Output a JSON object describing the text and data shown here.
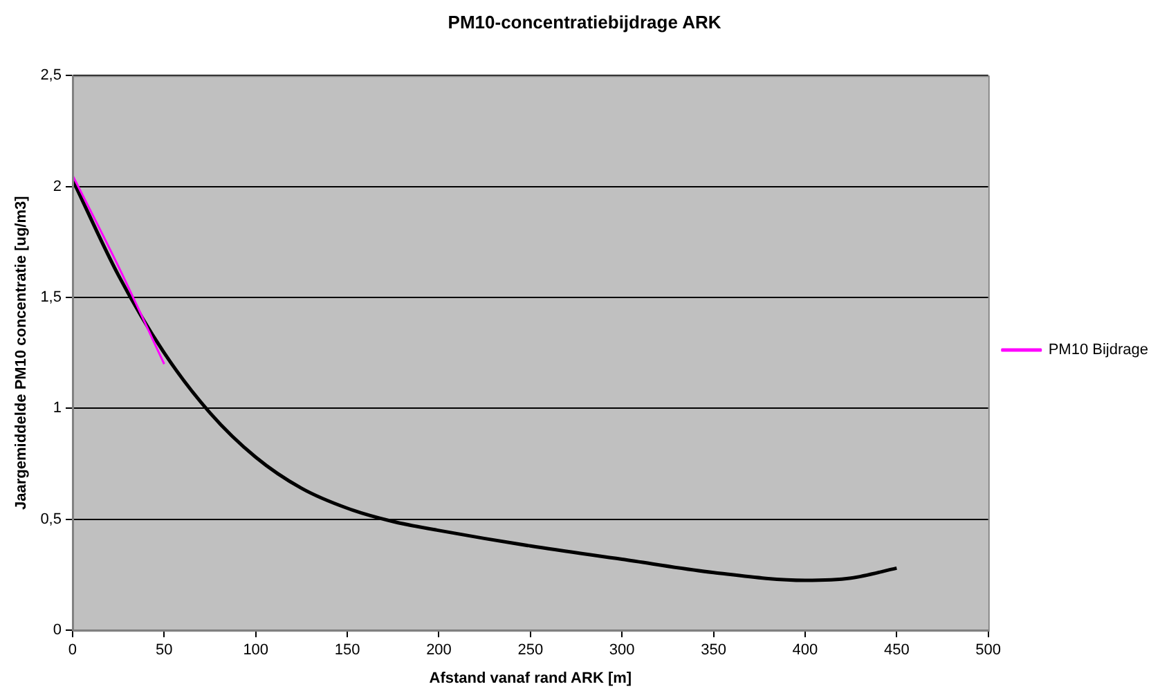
{
  "chart_data": {
    "type": "line",
    "title": "PM10-concentratiebijdrage ARK",
    "xlabel": "Afstand vanaf rand ARK [m]",
    "ylabel": "Jaargemiddelde PM10 concentratie [ug/m3]",
    "series": [
      {
        "name": "PM10 Bijdrage",
        "color": "#ff00ff",
        "x": [
          0,
          25,
          50
        ],
        "values": [
          2.05,
          1.64,
          1.2
        ]
      },
      {
        "type": "line",
        "color": "#000000",
        "x": [
          0,
          25,
          50,
          75,
          100,
          125,
          150,
          175,
          200,
          250,
          300,
          350,
          400,
          425,
          450
        ],
        "values": [
          2.03,
          1.6,
          1.25,
          0.98,
          0.78,
          0.64,
          0.55,
          0.49,
          0.45,
          0.38,
          0.32,
          0.26,
          0.225,
          0.235,
          0.28
        ]
      }
    ],
    "xlim": [
      0,
      500
    ],
    "xticks": [
      0,
      50,
      100,
      150,
      200,
      250,
      300,
      350,
      400,
      450,
      500
    ],
    "ylim": [
      0,
      2.5
    ],
    "yticks": [
      0,
      {
        "value": 0.5,
        "label": "0,5"
      },
      1,
      {
        "value": 1.5,
        "label": "1,5"
      },
      2,
      {
        "value": 2.5,
        "label": "2,5"
      }
    ],
    "grid": "y",
    "legend": "right",
    "marker": "none",
    "line_style": "solid"
  }
}
